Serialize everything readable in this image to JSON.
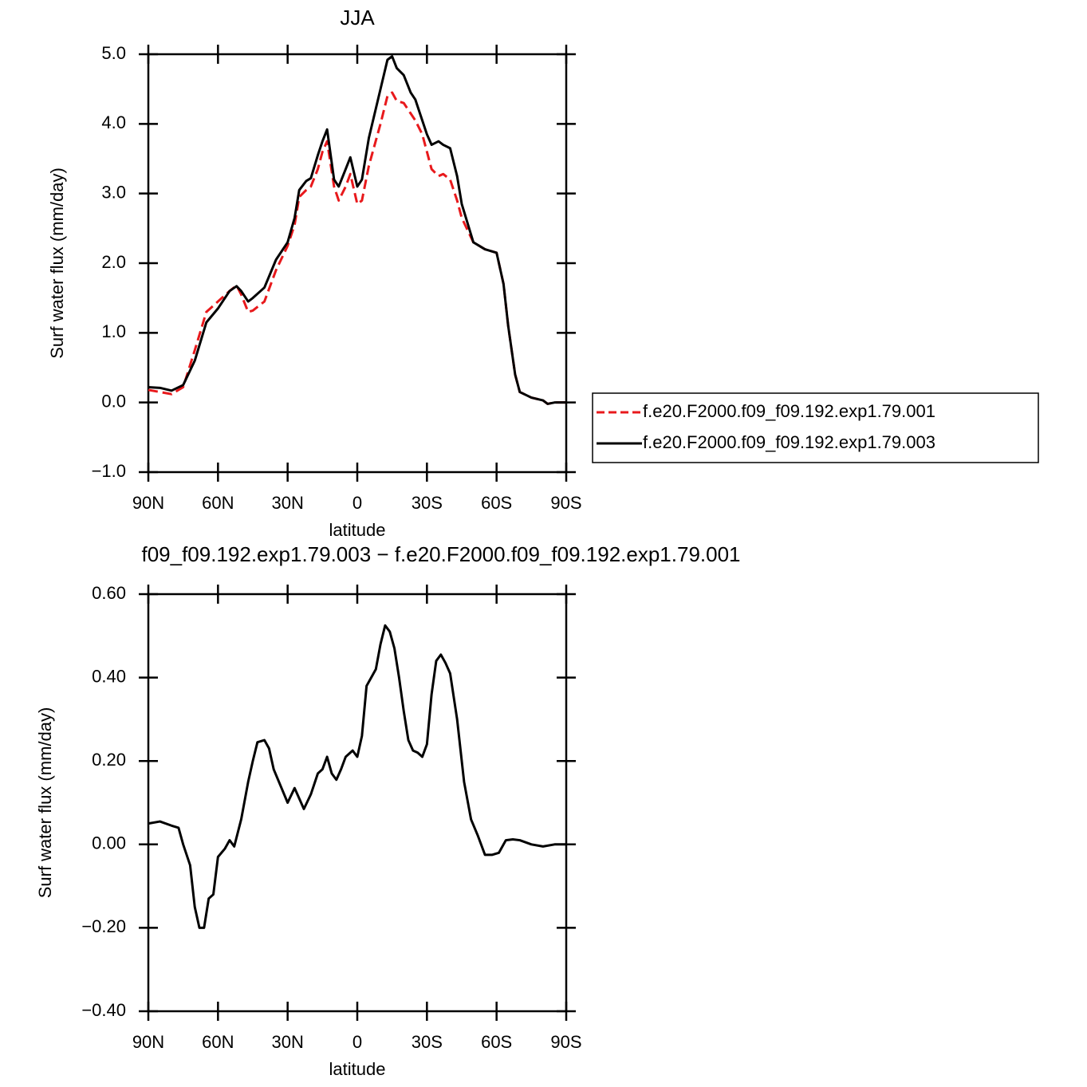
{
  "chart_data": [
    {
      "type": "line",
      "title": "JJA",
      "xlabel": "latitude",
      "ylabel": "Surf water flux (mm/day)",
      "xlim": [
        90,
        -90
      ],
      "xticks": [
        {
          "value": 90,
          "label": "90N"
        },
        {
          "value": 60,
          "label": "60N"
        },
        {
          "value": 30,
          "label": "30N"
        },
        0,
        {
          "value": -30,
          "label": "30S"
        },
        {
          "value": -60,
          "label": "60S"
        },
        {
          "value": -90,
          "label": "90S"
        }
      ],
      "ylim": [
        -1,
        5
      ],
      "yticks": [
        {
          "value": 5,
          "label": "5.0"
        },
        {
          "value": 4,
          "label": "4.0"
        },
        {
          "value": 3,
          "label": "3.0"
        },
        {
          "value": 2,
          "label": "2.0"
        },
        {
          "value": 1,
          "label": "1.0"
        },
        {
          "value": 0,
          "label": "0.0"
        },
        {
          "value": -1,
          "label": "−1.0"
        }
      ],
      "legend": "right",
      "x": [
        90,
        85,
        80,
        75,
        70,
        65,
        60,
        55,
        52,
        50,
        47,
        45,
        40,
        35,
        30,
        27,
        25,
        22,
        20,
        17,
        15,
        13,
        10,
        8,
        5,
        3,
        0,
        -2,
        -5,
        -10,
        -13,
        -15,
        -17,
        -20,
        -23,
        -25,
        -28,
        -30,
        -32,
        -35,
        -37,
        -40,
        -43,
        -45,
        -50,
        -55,
        -60,
        -63,
        -65,
        -68,
        -70,
        -75,
        -80,
        -82,
        -85,
        -90
      ],
      "series": [
        {
          "name": "f.e20.F2000.f09_f09.192.exp1.79.001",
          "color": "#e8191c",
          "dashed": true,
          "values": [
            0.18,
            0.15,
            0.12,
            0.22,
            0.75,
            1.3,
            1.45,
            1.6,
            1.68,
            1.55,
            1.3,
            1.32,
            1.45,
            1.9,
            2.25,
            2.55,
            2.95,
            3.05,
            3.1,
            3.35,
            3.6,
            3.75,
            3.1,
            2.9,
            3.1,
            3.28,
            2.85,
            2.9,
            3.4,
            4.0,
            4.4,
            4.45,
            4.33,
            4.3,
            4.15,
            4.05,
            3.85,
            3.6,
            3.35,
            3.25,
            3.28,
            3.2,
            2.9,
            2.65,
            2.3,
            2.2,
            2.15,
            1.7,
            1.1,
            0.4,
            0.15,
            0.07,
            0.03,
            -0.02,
            0.0,
            0.0
          ]
        },
        {
          "name": "f.e20.F2000.f09_f09.192.exp1.79.003",
          "color": "#000000",
          "dashed": false,
          "values": [
            0.22,
            0.21,
            0.17,
            0.25,
            0.6,
            1.15,
            1.35,
            1.6,
            1.67,
            1.6,
            1.45,
            1.5,
            1.65,
            2.05,
            2.3,
            2.65,
            3.05,
            3.18,
            3.22,
            3.55,
            3.75,
            3.92,
            3.2,
            3.1,
            3.35,
            3.52,
            3.1,
            3.2,
            3.8,
            4.5,
            4.92,
            4.97,
            4.8,
            4.7,
            4.45,
            4.35,
            4.05,
            3.85,
            3.7,
            3.75,
            3.7,
            3.65,
            3.25,
            2.85,
            2.3,
            2.2,
            2.15,
            1.7,
            1.1,
            0.4,
            0.15,
            0.07,
            0.03,
            -0.02,
            0.0,
            0.0
          ]
        }
      ]
    },
    {
      "type": "line",
      "title": "f09_f09.192.exp1.79.003 − f.e20.F2000.f09_f09.192.exp1.79.001",
      "xlabel": "latitude",
      "ylabel": "Surf water flux (mm/day)",
      "xlim": [
        90,
        -90
      ],
      "xticks": [
        {
          "value": 90,
          "label": "90N"
        },
        {
          "value": 60,
          "label": "60N"
        },
        {
          "value": 30,
          "label": "30N"
        },
        0,
        {
          "value": -30,
          "label": "30S"
        },
        {
          "value": -60,
          "label": "60S"
        },
        {
          "value": -90,
          "label": "90S"
        }
      ],
      "ylim": [
        -0.4,
        0.6
      ],
      "yticks": [
        {
          "value": 0.6,
          "label": "0.60"
        },
        {
          "value": 0.4,
          "label": "0.40"
        },
        {
          "value": 0.2,
          "label": "0.20"
        },
        {
          "value": 0,
          "label": "0.00"
        },
        {
          "value": -0.2,
          "label": "−0.20"
        },
        {
          "value": -0.4,
          "label": "−0.40"
        }
      ],
      "color": "#000000",
      "x": [
        90,
        85,
        80,
        77,
        75,
        72,
        70,
        68,
        66,
        64,
        62,
        60,
        57,
        55,
        53,
        50,
        47,
        45,
        43,
        40,
        38,
        36,
        33,
        30,
        27,
        25,
        23,
        20,
        17,
        15,
        13,
        11,
        9,
        7,
        5,
        2,
        0,
        -2,
        -4,
        -6,
        -8,
        -10,
        -12,
        -14,
        -16,
        -18,
        -20,
        -22,
        -24,
        -26,
        -28,
        -30,
        -32,
        -34,
        -36,
        -38,
        -40,
        -43,
        -46,
        -49,
        -52,
        -55,
        -58,
        -61,
        -64,
        -67,
        -70,
        -75,
        -80,
        -85,
        -90
      ],
      "values": [
        0.05,
        0.055,
        0.045,
        0.04,
        0.0,
        -0.05,
        -0.15,
        -0.2,
        -0.2,
        -0.13,
        -0.12,
        -0.03,
        -0.01,
        0.01,
        -0.005,
        0.06,
        0.15,
        0.2,
        0.245,
        0.25,
        0.23,
        0.18,
        0.14,
        0.1,
        0.135,
        0.11,
        0.085,
        0.12,
        0.17,
        0.18,
        0.21,
        0.17,
        0.155,
        0.18,
        0.21,
        0.225,
        0.21,
        0.26,
        0.38,
        0.4,
        0.42,
        0.48,
        0.525,
        0.51,
        0.47,
        0.4,
        0.32,
        0.25,
        0.225,
        0.22,
        0.21,
        0.24,
        0.36,
        0.44,
        0.455,
        0.435,
        0.41,
        0.3,
        0.15,
        0.06,
        0.02,
        -0.025,
        -0.025,
        -0.02,
        0.01,
        0.012,
        0.01,
        0.0,
        -0.005,
        0.0,
        0.0
      ]
    }
  ]
}
